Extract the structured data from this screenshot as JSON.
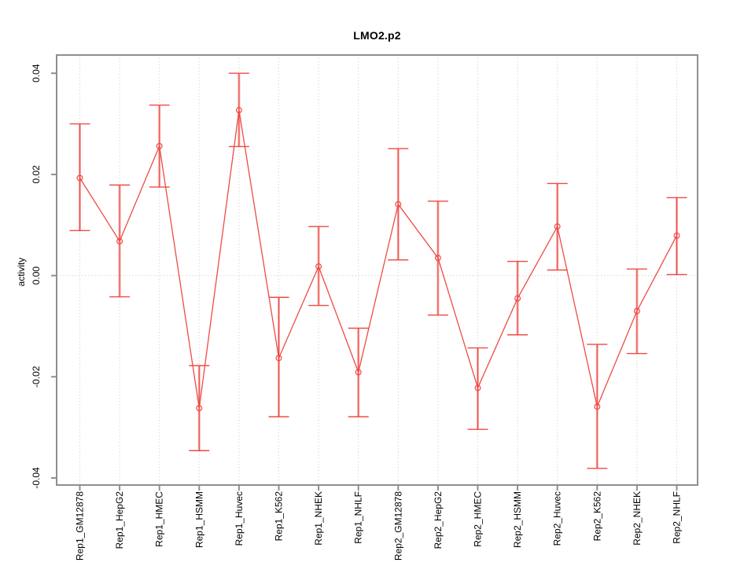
{
  "title": "LMO2.p2",
  "chart_data": {
    "type": "line",
    "title": "LMO2.p2",
    "xlabel": "",
    "ylabel": "activity",
    "categories": [
      "Rep1_GM12878",
      "Rep1_HepG2",
      "Rep1_HMEC",
      "Rep1_HSMM",
      "Rep1_Huvec",
      "Rep1_K562",
      "Rep1_NHEK",
      "Rep1_NHLF",
      "Rep2_GM12878",
      "Rep2_HepG2",
      "Rep2_HMEC",
      "Rep2_HSMM",
      "Rep2_Huvec",
      "Rep2_K562",
      "Rep2_NHEK",
      "Rep2_NHLF"
    ],
    "series": [
      {
        "name": "activity",
        "values": [
          0.0193,
          0.0068,
          0.0256,
          -0.0262,
          0.0327,
          -0.0163,
          0.0018,
          -0.0191,
          0.0141,
          0.0035,
          -0.0222,
          -0.0045,
          0.0097,
          -0.0259,
          -0.007,
          0.0079
        ],
        "ci_low": [
          0.0089,
          -0.0042,
          0.0175,
          -0.0346,
          0.0255,
          -0.0279,
          -0.0059,
          -0.0279,
          0.0031,
          -0.0078,
          -0.0304,
          -0.0117,
          0.0011,
          -0.0381,
          -0.0154,
          0.0002
        ],
        "ci_high": [
          0.03,
          0.0179,
          0.0337,
          -0.0178,
          0.04,
          -0.0043,
          0.0097,
          -0.0104,
          0.0251,
          0.0147,
          -0.0143,
          0.0028,
          0.0182,
          -0.0136,
          0.0013,
          0.0154
        ]
      }
    ],
    "ylim": [
      -0.0414,
      0.0436
    ],
    "y_ticks": [
      -0.04,
      -0.02,
      0.0,
      0.02,
      0.04
    ],
    "grid": "dotted vertical line at each category; dotted horizontal line at y=0",
    "legend": "none",
    "marker": "open-circle",
    "colors": {
      "series": "#ee4b45",
      "error_bar_overlay": "rgba(238,75,69,0.45)",
      "grid": "#dadada",
      "frame": "#8f8f8f",
      "tick": "#8f8f8f",
      "text": "#000000",
      "background": "#ffffff"
    }
  }
}
